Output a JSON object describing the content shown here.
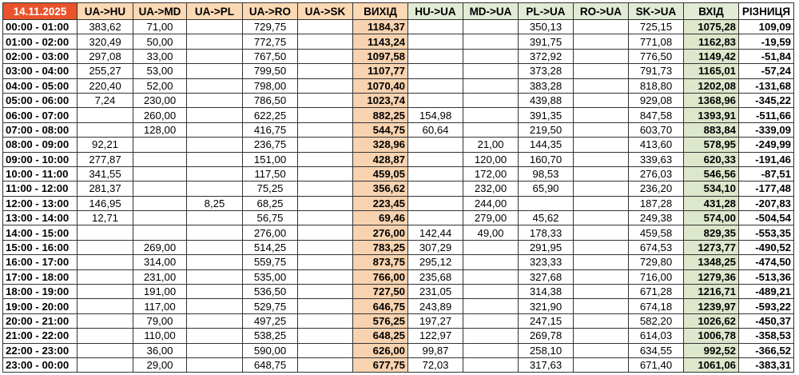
{
  "table": {
    "date": "14.11.2025",
    "headers": [
      "UA->HU",
      "UA->MD",
      "UA->PL",
      "UA->RO",
      "UA->SK",
      "ВИХІД",
      "HU->UA",
      "MD->UA",
      "PL->UA",
      "RO->UA",
      "SK->UA",
      "ВХІД",
      "РІЗНИЦЯ"
    ],
    "colors": {
      "date": "#e8532b",
      "export_header": "#fbd9b5",
      "import_header": "#e2ebd6",
      "export_total": "#f8d3b0",
      "import_total": "#dde7cc"
    },
    "rows": [
      [
        "00:00 - 01:00",
        "383,62",
        "71,00",
        "",
        "729,75",
        "",
        "1184,37",
        "",
        "",
        "350,13",
        "",
        "725,15",
        "1075,28",
        "109,09"
      ],
      [
        "01:00 - 02:00",
        "320,49",
        "50,00",
        "",
        "772,75",
        "",
        "1143,24",
        "",
        "",
        "391,75",
        "",
        "771,08",
        "1162,83",
        "-19,59"
      ],
      [
        "02:00 - 03:00",
        "297,08",
        "33,00",
        "",
        "767,50",
        "",
        "1097,58",
        "",
        "",
        "372,92",
        "",
        "776,50",
        "1149,42",
        "-51,84"
      ],
      [
        "03:00 - 04:00",
        "255,27",
        "53,00",
        "",
        "799,50",
        "",
        "1107,77",
        "",
        "",
        "373,28",
        "",
        "791,73",
        "1165,01",
        "-57,24"
      ],
      [
        "04:00 - 05:00",
        "220,40",
        "52,00",
        "",
        "798,00",
        "",
        "1070,40",
        "",
        "",
        "383,28",
        "",
        "818,80",
        "1202,08",
        "-131,68"
      ],
      [
        "05:00 - 06:00",
        "7,24",
        "230,00",
        "",
        "786,50",
        "",
        "1023,74",
        "",
        "",
        "439,88",
        "",
        "929,08",
        "1368,96",
        "-345,22"
      ],
      [
        "06:00 - 07:00",
        "",
        "260,00",
        "",
        "622,25",
        "",
        "882,25",
        "154,98",
        "",
        "391,35",
        "",
        "847,58",
        "1393,91",
        "-511,66"
      ],
      [
        "07:00 - 08:00",
        "",
        "128,00",
        "",
        "416,75",
        "",
        "544,75",
        "60,64",
        "",
        "219,50",
        "",
        "603,70",
        "883,84",
        "-339,09"
      ],
      [
        "08:00 - 09:00",
        "92,21",
        "",
        "",
        "236,75",
        "",
        "328,96",
        "",
        "21,00",
        "144,35",
        "",
        "413,60",
        "578,95",
        "-249,99"
      ],
      [
        "09:00 - 10:00",
        "277,87",
        "",
        "",
        "151,00",
        "",
        "428,87",
        "",
        "120,00",
        "160,70",
        "",
        "339,63",
        "620,33",
        "-191,46"
      ],
      [
        "10:00 - 11:00",
        "341,55",
        "",
        "",
        "117,50",
        "",
        "459,05",
        "",
        "172,00",
        "98,53",
        "",
        "276,03",
        "546,56",
        "-87,51"
      ],
      [
        "11:00 - 12:00",
        "281,37",
        "",
        "",
        "75,25",
        "",
        "356,62",
        "",
        "232,00",
        "65,90",
        "",
        "236,20",
        "534,10",
        "-177,48"
      ],
      [
        "12:00 - 13:00",
        "146,95",
        "",
        "8,25",
        "68,25",
        "",
        "223,45",
        "",
        "244,00",
        "",
        "",
        "187,28",
        "431,28",
        "-207,83"
      ],
      [
        "13:00 - 14:00",
        "12,71",
        "",
        "",
        "56,75",
        "",
        "69,46",
        "",
        "279,00",
        "45,62",
        "",
        "249,38",
        "574,00",
        "-504,54"
      ],
      [
        "14:00 - 15:00",
        "",
        "",
        "",
        "276,00",
        "",
        "276,00",
        "142,44",
        "49,00",
        "178,33",
        "",
        "459,58",
        "829,35",
        "-553,35"
      ],
      [
        "15:00 - 16:00",
        "",
        "269,00",
        "",
        "514,25",
        "",
        "783,25",
        "307,29",
        "",
        "291,95",
        "",
        "674,53",
        "1273,77",
        "-490,52"
      ],
      [
        "16:00 - 17:00",
        "",
        "314,00",
        "",
        "559,75",
        "",
        "873,75",
        "295,12",
        "",
        "323,33",
        "",
        "729,80",
        "1348,25",
        "-474,50"
      ],
      [
        "17:00 - 18:00",
        "",
        "231,00",
        "",
        "535,00",
        "",
        "766,00",
        "235,68",
        "",
        "327,68",
        "",
        "716,00",
        "1279,36",
        "-513,36"
      ],
      [
        "18:00 - 19:00",
        "",
        "191,00",
        "",
        "536,50",
        "",
        "727,50",
        "231,05",
        "",
        "314,38",
        "",
        "671,28",
        "1216,71",
        "-489,21"
      ],
      [
        "19:00 - 20:00",
        "",
        "117,00",
        "",
        "529,75",
        "",
        "646,75",
        "243,89",
        "",
        "321,90",
        "",
        "674,18",
        "1239,97",
        "-593,22"
      ],
      [
        "20:00 - 21:00",
        "",
        "79,00",
        "",
        "497,25",
        "",
        "576,25",
        "197,27",
        "",
        "247,15",
        "",
        "582,20",
        "1026,62",
        "-450,37"
      ],
      [
        "21:00 - 22:00",
        "",
        "110,00",
        "",
        "538,25",
        "",
        "648,25",
        "122,97",
        "",
        "269,78",
        "",
        "614,03",
        "1006,78",
        "-358,53"
      ],
      [
        "22:00 - 23:00",
        "",
        "36,00",
        "",
        "590,00",
        "",
        "626,00",
        "99,87",
        "",
        "258,10",
        "",
        "634,55",
        "992,52",
        "-366,52"
      ],
      [
        "23:00 - 00:00",
        "",
        "29,00",
        "",
        "648,75",
        "",
        "677,75",
        "72,03",
        "",
        "317,63",
        "",
        "671,40",
        "1061,06",
        "-383,31"
      ]
    ]
  }
}
